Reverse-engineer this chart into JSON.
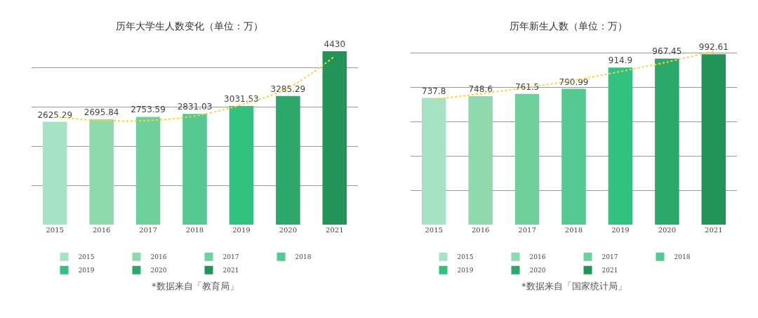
{
  "chart_data": [
    {
      "type": "bar",
      "title": "历年大学生人数变化（单位：万）",
      "categories": [
        "2015",
        "2016",
        "2017",
        "2018",
        "2019",
        "2020",
        "2021"
      ],
      "series": [
        {
          "name": "2015",
          "color": "#a8e2c4",
          "values": [
            2625.29,
            null,
            null,
            null,
            null,
            null,
            null
          ],
          "value_labels": [
            "2625.29",
            null,
            null,
            null,
            null,
            null,
            null
          ]
        },
        {
          "name": "2016",
          "color": "#8ed9ae",
          "values": [
            null,
            2695.84,
            null,
            null,
            null,
            null,
            null
          ],
          "value_labels": [
            null,
            "2695.84",
            null,
            null,
            null,
            null,
            null
          ]
        },
        {
          "name": "2017",
          "color": "#6fd09e",
          "values": [
            null,
            null,
            2753.59,
            null,
            null,
            null,
            null
          ],
          "value_labels": [
            null,
            null,
            "2753.59",
            null,
            null,
            null,
            null
          ]
        },
        {
          "name": "2018",
          "color": "#55c991",
          "values": [
            null,
            null,
            null,
            2831.03,
            null,
            null,
            null
          ],
          "value_labels": [
            null,
            null,
            null,
            "2831.03",
            null,
            null,
            null
          ]
        },
        {
          "name": "2019",
          "color": "#33c180",
          "values": [
            null,
            null,
            null,
            null,
            3031.53,
            null,
            null
          ],
          "value_labels": [
            null,
            null,
            null,
            null,
            "3031.53",
            null,
            null
          ]
        },
        {
          "name": "2020",
          "color": "#2ca86b",
          "values": [
            null,
            null,
            null,
            null,
            null,
            3285.29,
            null
          ],
          "value_labels": [
            null,
            null,
            null,
            null,
            null,
            "3285.29",
            null
          ]
        },
        {
          "name": "2021",
          "color": "#239457",
          "values": [
            null,
            null,
            null,
            null,
            null,
            null,
            4430
          ],
          "value_labels": [
            null,
            null,
            null,
            null,
            null,
            null,
            "4430"
          ]
        },
        {
          "type": "line",
          "color": "#f5d442",
          "line_style": "dotted",
          "marker": "none",
          "values": [
            2755,
            2660,
            2660,
            2775,
            3065,
            3490,
            4300
          ]
        }
      ],
      "grid": "y",
      "tick_labels": "x",
      "legend": "bottom",
      "annotations": [
        "*数据来自「教育局」"
      ]
    },
    {
      "type": "bar",
      "title": "历年新生人数（单位：万）",
      "categories": [
        "2015",
        "2016",
        "2017",
        "2018",
        "2019",
        "2020",
        "2021"
      ],
      "series": [
        {
          "name": "2015",
          "color": "#a8e2c4",
          "values": [
            737.8,
            null,
            null,
            null,
            null,
            null,
            null
          ],
          "value_labels": [
            "737.8",
            null,
            null,
            null,
            null,
            null,
            null
          ]
        },
        {
          "name": "2016",
          "color": "#8ed9ae",
          "values": [
            null,
            748.6,
            null,
            null,
            null,
            null,
            null
          ],
          "value_labels": [
            null,
            "748.6",
            null,
            null,
            null,
            null,
            null
          ]
        },
        {
          "name": "2017",
          "color": "#6fd09e",
          "values": [
            null,
            null,
            761.5,
            null,
            null,
            null,
            null
          ],
          "value_labels": [
            null,
            null,
            "761.5",
            null,
            null,
            null,
            null
          ]
        },
        {
          "name": "2018",
          "color": "#55c991",
          "values": [
            null,
            null,
            null,
            790.99,
            null,
            null,
            null
          ],
          "value_labels": [
            null,
            null,
            null,
            "790.99",
            null,
            null,
            null
          ]
        },
        {
          "name": "2019",
          "color": "#33c180",
          "values": [
            null,
            null,
            null,
            null,
            914.9,
            null,
            null
          ],
          "value_labels": [
            null,
            null,
            null,
            null,
            "914.9",
            null,
            null
          ]
        },
        {
          "name": "2020",
          "color": "#2ca86b",
          "values": [
            null,
            null,
            null,
            null,
            null,
            967.45,
            null
          ],
          "value_labels": [
            null,
            null,
            null,
            null,
            null,
            "967.45",
            null
          ]
        },
        {
          "name": "2021",
          "color": "#239457",
          "values": [
            null,
            null,
            null,
            null,
            null,
            null,
            992.61
          ],
          "value_labels": [
            null,
            null,
            null,
            null,
            null,
            null,
            "992.61"
          ]
        },
        {
          "type": "line",
          "color": "#f5d442",
          "line_style": "dotted",
          "marker": "none",
          "values": [
            730,
            762,
            799,
            841,
            892,
            947,
            1010
          ]
        }
      ],
      "grid": "y",
      "tick_labels": "x",
      "legend": "bottom",
      "annotations": [
        "*数据来自「国家统计局」"
      ]
    }
  ]
}
